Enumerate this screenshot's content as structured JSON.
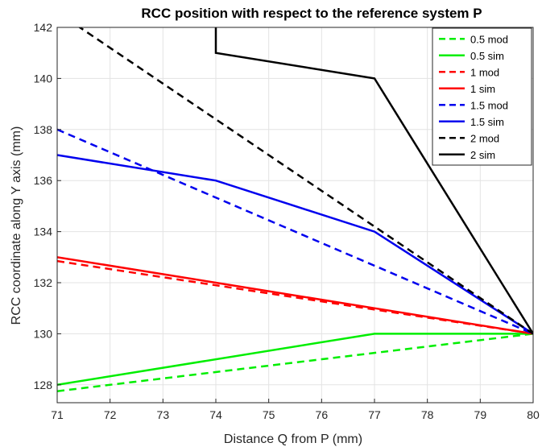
{
  "chart_data": {
    "type": "line",
    "title": "RCC position with respect to the reference system P",
    "xlabel": "Distance Q from P (mm)",
    "ylabel": "RCC coordinate along Y axis (mm)",
    "xlim": [
      71,
      80
    ],
    "ylim": [
      127.3,
      142
    ],
    "xticks": [
      71,
      72,
      73,
      74,
      75,
      76,
      77,
      78,
      79,
      80
    ],
    "yticks": [
      128,
      130,
      132,
      134,
      136,
      138,
      140,
      142
    ],
    "grid": true,
    "legend_position": "top-right",
    "series": [
      {
        "name": "0.5 mod",
        "color": "#00ee00",
        "dash": "dashed",
        "x": [
          71,
          80
        ],
        "y": [
          127.75,
          130
        ]
      },
      {
        "name": "0.5 sim",
        "color": "#00ee00",
        "dash": "solid",
        "x": [
          71,
          77,
          80
        ],
        "y": [
          128,
          130,
          130
        ]
      },
      {
        "name": "1 mod",
        "color": "#ff0000",
        "dash": "dashed",
        "x": [
          71,
          80
        ],
        "y": [
          132.85,
          130
        ]
      },
      {
        "name": "1 sim",
        "color": "#ff0000",
        "dash": "solid",
        "x": [
          71,
          74,
          77,
          80
        ],
        "y": [
          133,
          132,
          131,
          130
        ]
      },
      {
        "name": "1.5 mod",
        "color": "#0000ee",
        "dash": "dashed",
        "x": [
          71,
          80
        ],
        "y": [
          138,
          130
        ]
      },
      {
        "name": "1.5 sim",
        "color": "#0000ee",
        "dash": "solid",
        "x": [
          71,
          74,
          77,
          80
        ],
        "y": [
          137,
          136,
          134,
          130
        ]
      },
      {
        "name": "2 mod",
        "color": "#000000",
        "dash": "dashed",
        "x": [
          71,
          80
        ],
        "y": [
          142.6,
          130
        ]
      },
      {
        "name": "2 sim",
        "color": "#000000",
        "dash": "solid",
        "x": [
          74,
          74,
          77,
          80
        ],
        "y": [
          143,
          141,
          140,
          130
        ]
      }
    ]
  }
}
